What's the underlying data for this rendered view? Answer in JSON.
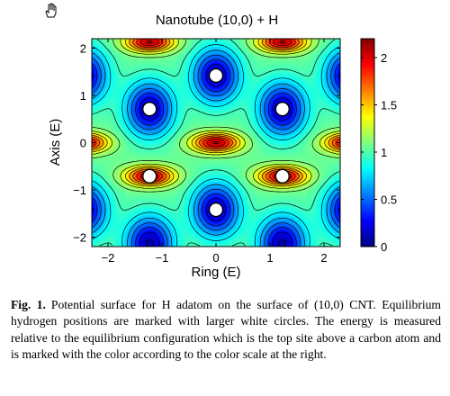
{
  "window": {
    "cursor_icon": "hand-pointer-icon"
  },
  "chart_data": {
    "type": "heatmap",
    "subtype": "filled-contour",
    "title": "Nanotube (10,0) + H",
    "xlabel": "Ring (E)",
    "ylabel": "Axis (E)",
    "xlim": [
      -2.3,
      2.3
    ],
    "ylim": [
      -2.2,
      2.2
    ],
    "xticks": [
      -2,
      -1,
      0,
      1,
      2
    ],
    "xtick_labels": [
      "−2",
      "−1",
      "0",
      "1",
      "2"
    ],
    "yticks": [
      -2,
      -1,
      0,
      1,
      2
    ],
    "ytick_labels": [
      "−2",
      "−1",
      "0",
      "1",
      "2"
    ],
    "colorbar": {
      "min": 0,
      "max": 2.2,
      "ticks": [
        0,
        0.5,
        1,
        1.5,
        2
      ],
      "tick_labels": [
        "0",
        "0.5",
        "1",
        "1.5",
        "2"
      ],
      "colormap": "jet"
    },
    "contour_line_color": "#000000",
    "equilibrium_positions": [
      {
        "x": 0,
        "y": 1.42
      },
      {
        "x": 0,
        "y": -1.42
      },
      {
        "x": -1.23,
        "y": 0.71
      },
      {
        "x": 1.23,
        "y": 0.71
      },
      {
        "x": -1.23,
        "y": -0.71
      },
      {
        "x": 1.23,
        "y": -0.71
      }
    ],
    "grid": false,
    "legend": "colorbar-right"
  },
  "caption": {
    "label": "Fig. 1.",
    "text": "Potential surface for H adatom on the surface of (10,0) CNT. Equilibrium hydrogen positions are marked with larger white circles. The energy is measured relative to the equilibrium configuration which is the top site above a carbon atom and is marked with the color according to the color scale at the right."
  }
}
